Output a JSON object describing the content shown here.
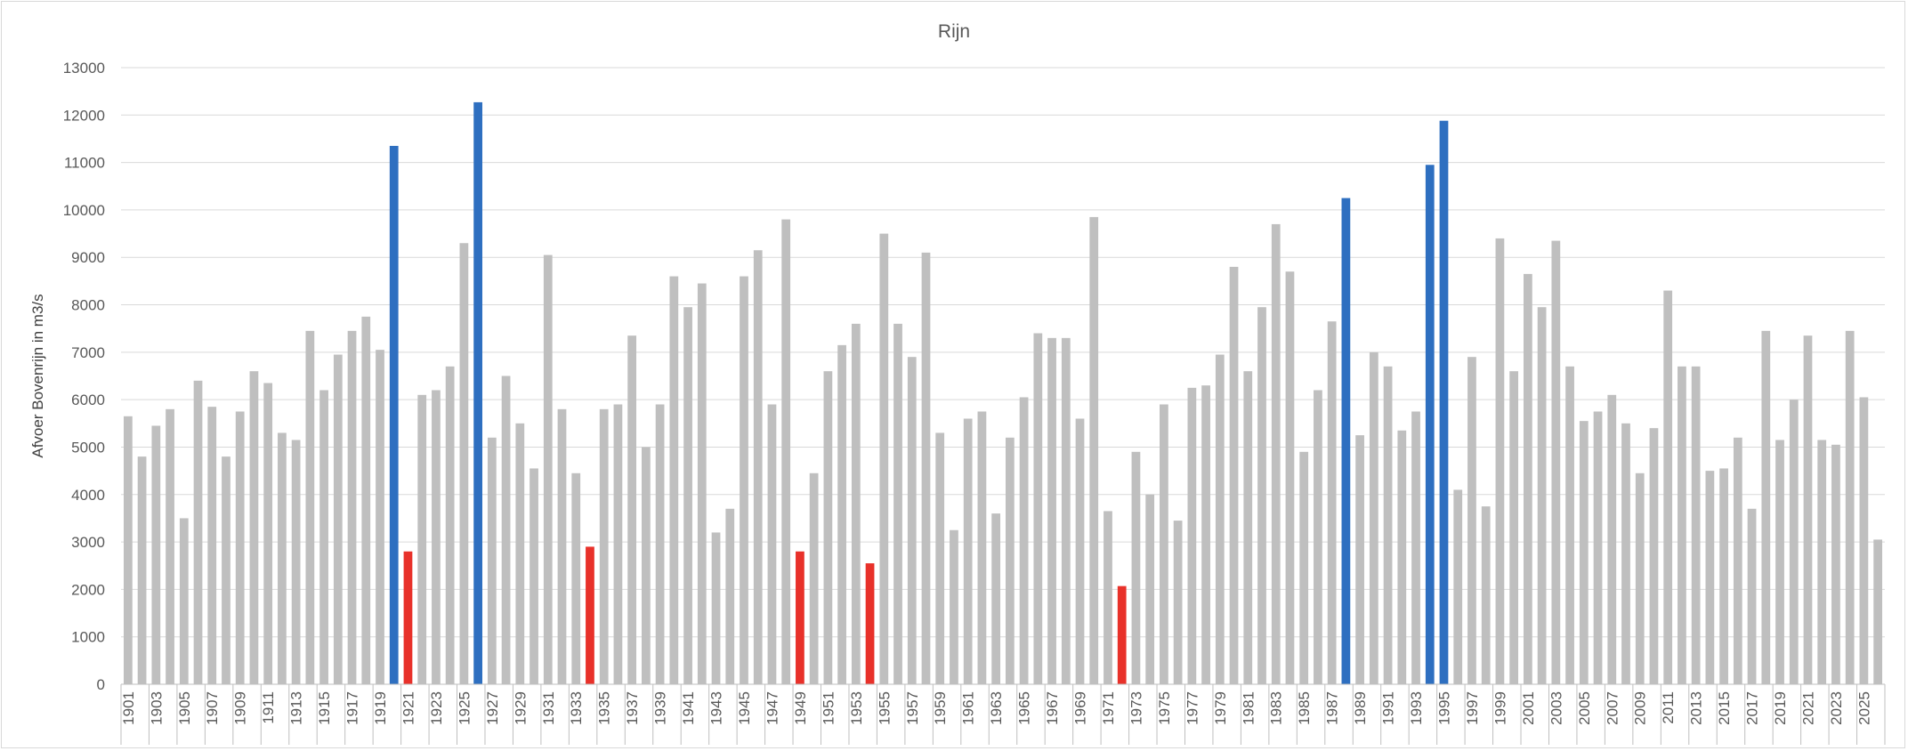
{
  "chart_data": {
    "type": "bar",
    "title": "Rijn",
    "ylabel": "Afvoer Bovenrijn in m3/s",
    "xlabel": "",
    "ylim": [
      0,
      13000
    ],
    "yticks": [
      0,
      1000,
      2000,
      3000,
      4000,
      5000,
      6000,
      7000,
      8000,
      9000,
      10000,
      11000,
      12000,
      13000
    ],
    "ytick_labels": [
      "0",
      "1000",
      "2000",
      "3000",
      "4000",
      "5000",
      "6000",
      "7000",
      "8000",
      "9000",
      "10000",
      "11000",
      "12000",
      "13000"
    ],
    "grid": true,
    "legend": "none",
    "categories": [
      1901,
      1902,
      1903,
      1904,
      1905,
      1906,
      1907,
      1908,
      1909,
      1910,
      1911,
      1912,
      1913,
      1914,
      1915,
      1916,
      1917,
      1918,
      1919,
      1920,
      1921,
      1922,
      1923,
      1924,
      1925,
      1926,
      1927,
      1928,
      1929,
      1930,
      1931,
      1932,
      1933,
      1934,
      1935,
      1936,
      1937,
      1938,
      1939,
      1940,
      1941,
      1942,
      1943,
      1944,
      1945,
      1946,
      1947,
      1948,
      1949,
      1950,
      1951,
      1952,
      1953,
      1954,
      1955,
      1956,
      1957,
      1958,
      1959,
      1960,
      1961,
      1962,
      1963,
      1964,
      1965,
      1966,
      1967,
      1968,
      1969,
      1970,
      1971,
      1972,
      1973,
      1974,
      1975,
      1976,
      1977,
      1978,
      1979,
      1980,
      1981,
      1982,
      1983,
      1984,
      1985,
      1986,
      1987,
      1988,
      1989,
      1990,
      1991,
      1992,
      1993,
      1994,
      1995,
      1996,
      1997,
      1998,
      1999,
      2000,
      2001,
      2002,
      2003,
      2004,
      2005,
      2006,
      2007,
      2008,
      2009,
      2010,
      2011,
      2012,
      2013,
      2014,
      2015,
      2016,
      2017,
      2018,
      2019,
      2020,
      2021,
      2022,
      2023,
      2024,
      2025,
      2026
    ],
    "x_tick_labels": [
      "1901",
      "1903",
      "1905",
      "1907",
      "1909",
      "1911",
      "1913",
      "1915",
      "1917",
      "1919",
      "1921",
      "1923",
      "1925",
      "1927",
      "1929",
      "1931",
      "1933",
      "1935",
      "1937",
      "1939",
      "1941",
      "1943",
      "1945",
      "1947",
      "1949",
      "1951",
      "1953",
      "1955",
      "1957",
      "1959",
      "1961",
      "1963",
      "1965",
      "1967",
      "1969",
      "1971",
      "1973",
      "1975",
      "1977",
      "1979",
      "1981",
      "1983",
      "1985",
      "1987",
      "1989",
      "1991",
      "1993",
      "1995",
      "1997",
      "1999",
      "2001",
      "2003",
      "2005",
      "2007",
      "2009",
      "2011",
      "2013",
      "2015",
      "2017",
      "2019",
      "2021",
      "2023",
      "2025"
    ],
    "values": [
      5650,
      4800,
      5450,
      5800,
      3500,
      6400,
      5850,
      4800,
      5750,
      6600,
      6350,
      5300,
      5150,
      7450,
      6200,
      6950,
      7450,
      7750,
      7050,
      11350,
      2800,
      6100,
      6200,
      6700,
      9300,
      12270,
      5200,
      6500,
      5500,
      4550,
      9050,
      5800,
      4450,
      2900,
      5800,
      5900,
      7350,
      5000,
      5900,
      8600,
      7950,
      8450,
      3200,
      3700,
      8600,
      9150,
      5900,
      9800,
      2800,
      4450,
      6600,
      7150,
      7600,
      2550,
      9500,
      7600,
      6900,
      9100,
      5300,
      3250,
      5600,
      5750,
      3600,
      5200,
      6050,
      7400,
      7300,
      7300,
      5600,
      9850,
      3650,
      2070,
      4900,
      4000,
      5900,
      3450,
      6250,
      6300,
      6950,
      8800,
      6600,
      7950,
      9700,
      8700,
      4900,
      6200,
      7650,
      10250,
      5250,
      7000,
      6700,
      5350,
      5750,
      10950,
      11880,
      4100,
      6900,
      3750,
      9400,
      6600,
      8650,
      7950,
      9350,
      6700,
      5550,
      5750,
      6100,
      5500,
      4450,
      5400,
      8300,
      6700,
      6700,
      4500,
      4550,
      5200,
      3700,
      7450,
      5150,
      6000,
      7350,
      5150,
      5050,
      7450,
      6050,
      3050
    ],
    "highlight_colors": {
      "default": "#bfbfbf",
      "high": "#2e6fc0",
      "low": "#e8312a"
    },
    "bar_highlight": {
      "1920": "high",
      "1926": "high",
      "1988": "high",
      "1994": "high",
      "1995": "high",
      "1921": "low",
      "1934": "low",
      "1949": "low",
      "1954": "low",
      "1972": "low"
    }
  }
}
